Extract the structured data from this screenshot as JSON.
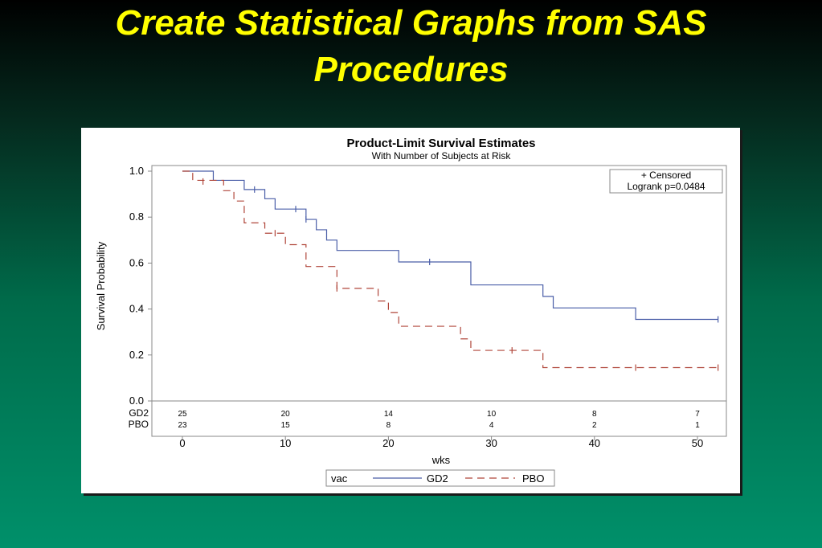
{
  "slide": {
    "title_line1": "Create Statistical Graphs from SAS",
    "title_line2": "Procedures"
  },
  "colors": {
    "gd2": "#4a5ea8",
    "pbo": "#b0463a",
    "title": "#ffff00"
  },
  "chart_data": {
    "type": "line",
    "subtype": "step",
    "title": "Product-Limit Survival Estimates",
    "subtitle": "With Number of Subjects at Risk",
    "xlabel": "wks",
    "ylabel": "Survival Probability",
    "xlim": [
      0,
      52
    ],
    "ylim": [
      0,
      1
    ],
    "xticks": [
      0,
      10,
      20,
      30,
      40,
      50
    ],
    "yticks": [
      "0.0",
      "0.2",
      "0.4",
      "0.6",
      "0.8",
      "1.0"
    ],
    "inset": {
      "line1": "+ Censored",
      "line2": "Logrank p=0.0484"
    },
    "legend": {
      "title": "vac",
      "position": "bottom"
    },
    "series": [
      {
        "name": "GD2",
        "style": "solid",
        "steps": [
          [
            0,
            1.0
          ],
          [
            3,
            0.96
          ],
          [
            6,
            0.92
          ],
          [
            8,
            0.88
          ],
          [
            9,
            0.835
          ],
          [
            12,
            0.79
          ],
          [
            13,
            0.745
          ],
          [
            14,
            0.7
          ],
          [
            15,
            0.655
          ],
          [
            21,
            0.605
          ],
          [
            28,
            0.505
          ],
          [
            35,
            0.455
          ],
          [
            36,
            0.405
          ],
          [
            44,
            0.355
          ],
          [
            52,
            0.355
          ]
        ],
        "censored": [
          [
            7,
            0.92
          ],
          [
            11,
            0.835
          ],
          [
            12,
            0.79
          ],
          [
            24,
            0.605
          ],
          [
            52,
            0.355
          ]
        ]
      },
      {
        "name": "PBO",
        "style": "dashed",
        "steps": [
          [
            0,
            1.0
          ],
          [
            1,
            0.96
          ],
          [
            4,
            0.915
          ],
          [
            5,
            0.87
          ],
          [
            6,
            0.775
          ],
          [
            8,
            0.73
          ],
          [
            10,
            0.68
          ],
          [
            12,
            0.585
          ],
          [
            15,
            0.49
          ],
          [
            19,
            0.435
          ],
          [
            20,
            0.385
          ],
          [
            21,
            0.325
          ],
          [
            27,
            0.27
          ],
          [
            28,
            0.22
          ],
          [
            35,
            0.145
          ],
          [
            52,
            0.145
          ]
        ],
        "censored": [
          [
            2,
            0.955
          ],
          [
            9,
            0.73
          ],
          [
            15,
            0.49
          ],
          [
            32,
            0.22
          ],
          [
            44,
            0.145
          ],
          [
            52,
            0.145
          ]
        ]
      }
    ],
    "at_risk": {
      "times": [
        0,
        10,
        20,
        30,
        40,
        50
      ],
      "rows": [
        {
          "label": "GD2",
          "counts": [
            "25",
            "20",
            "14",
            "10",
            "8",
            "7"
          ]
        },
        {
          "label": "PBO",
          "counts": [
            "23",
            "15",
            "8",
            "4",
            "2",
            "1"
          ]
        }
      ]
    }
  }
}
